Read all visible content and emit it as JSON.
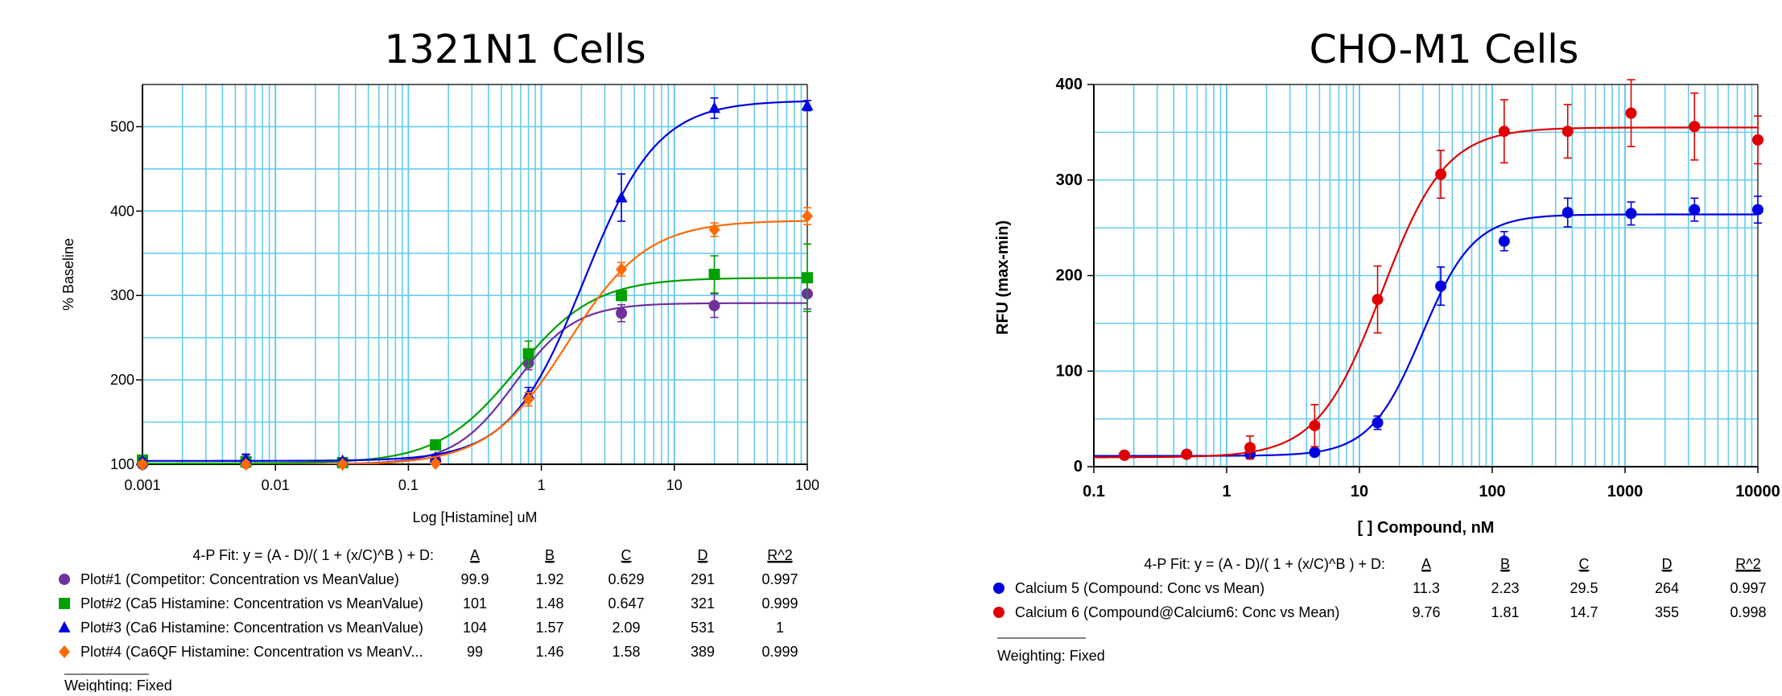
{
  "chart_data": [
    {
      "type": "scatter",
      "title": "1321N1 Cells",
      "xlabel": "Log [Histamine] uM",
      "ylabel": "% Baseline",
      "xscale": "log",
      "xlim": [
        0.001,
        100
      ],
      "ylim": [
        100,
        550
      ],
      "x_ticks": [
        0.001,
        0.01,
        0.1,
        1,
        10,
        100
      ],
      "x_tick_labels": [
        "0.001",
        "0.01",
        "0.1",
        "1",
        "10",
        "100"
      ],
      "y_ticks": [
        100,
        200,
        300,
        400,
        500
      ],
      "y_tick_labels": [
        "100",
        "200",
        "300",
        "400",
        "500"
      ],
      "grid": true,
      "fit_equation": "4-P Fit: y = (A - D)/( 1 + (x/C)^B ) + D:",
      "param_headers": [
        "A",
        "B",
        "C",
        "D",
        "R^2"
      ],
      "weighting": "Weighting: Fixed",
      "series": [
        {
          "name": "Plot#1 (Competitor: Concentration vs MeanValue)",
          "color": "#7030a0",
          "marker": "circle",
          "params": {
            "A": "99.9",
            "B": "1.92",
            "C": "0.629",
            "D": "291",
            "R2": "0.997"
          },
          "fit": {
            "A": 99.9,
            "B": 1.92,
            "C": 0.629,
            "D": 291
          },
          "x": [
            0.001,
            0.006,
            0.032,
            0.16,
            0.8,
            4,
            20,
            100
          ],
          "y": [
            100,
            101,
            102,
            105,
            220,
            279,
            288,
            302
          ],
          "err": [
            3,
            10,
            3,
            3,
            8,
            10,
            14,
            18
          ]
        },
        {
          "name": "Plot#2 (Ca5 Histamine: Concentration vs MeanValue)",
          "color": "#00a000",
          "marker": "square",
          "params": {
            "A": "101",
            "B": "1.48",
            "C": "0.647",
            "D": "321",
            "R2": "0.999"
          },
          "fit": {
            "A": 101,
            "B": 1.48,
            "C": 0.647,
            "D": 321
          },
          "x": [
            0.001,
            0.006,
            0.032,
            0.16,
            0.8,
            4,
            20,
            100
          ],
          "y": [
            105,
            103,
            102,
            123,
            231,
            300,
            325,
            321
          ],
          "err": [
            3,
            6,
            3,
            3,
            15,
            6,
            22,
            40
          ]
        },
        {
          "name": "Plot#3 (Ca6 Histamine: Concentration vs MeanValue)",
          "color": "#0000e0",
          "marker": "triangle",
          "params": {
            "A": "104",
            "B": "1.57",
            "C": "2.09",
            "D": "531",
            "R2": "1"
          },
          "fit": {
            "A": 104,
            "B": 1.57,
            "C": 2.09,
            "D": 531
          },
          "x": [
            0.001,
            0.006,
            0.032,
            0.16,
            0.8,
            4,
            20,
            100
          ],
          "y": [
            104,
            106,
            104,
            108,
            183,
            416,
            522,
            525
          ],
          "err": [
            3,
            6,
            3,
            3,
            8,
            28,
            12,
            6
          ]
        },
        {
          "name": "Plot#4 (Ca6QF Histamine: Concentration vs MeanV...",
          "color": "#ff6a00",
          "marker": "diamond",
          "params": {
            "A": "99",
            "B": "1.46",
            "C": "1.58",
            "D": "389",
            "R2": "0.999"
          },
          "fit": {
            "A": 99,
            "B": 1.46,
            "C": 1.58,
            "D": 389
          },
          "x": [
            0.001,
            0.006,
            0.032,
            0.16,
            0.8,
            4,
            20,
            100
          ],
          "y": [
            100,
            100,
            100,
            101,
            177,
            331,
            378,
            394
          ],
          "err": [
            3,
            3,
            3,
            3,
            8,
            8,
            8,
            10
          ]
        }
      ]
    },
    {
      "type": "scatter",
      "title": "CHO-M1 Cells",
      "xlabel": "[ ] Compound, nM",
      "ylabel": "RFU (max-min)",
      "xscale": "log",
      "xlim": [
        0.1,
        10000
      ],
      "ylim": [
        0,
        400
      ],
      "x_ticks": [
        0.1,
        1,
        10,
        100,
        1000,
        10000
      ],
      "x_tick_labels": [
        "0.1",
        "1",
        "10",
        "100",
        "1000",
        "10000"
      ],
      "y_ticks": [
        0,
        100,
        200,
        300,
        400
      ],
      "y_tick_labels": [
        "0",
        "100",
        "200",
        "300",
        "400"
      ],
      "grid": true,
      "fit_equation": "4-P Fit: y = (A - D)/( 1 + (x/C)^B ) + D:",
      "param_headers": [
        "A",
        "B",
        "C",
        "D",
        "R^2"
      ],
      "weighting": "Weighting: Fixed",
      "series": [
        {
          "name": "Calcium 5 (Compound: Conc vs Mean)",
          "color": "#0000e0",
          "marker": "circle",
          "params": {
            "A": "11.3",
            "B": "2.23",
            "C": "29.5",
            "D": "264",
            "R2": "0.997"
          },
          "fit": {
            "A": 11.3,
            "B": 2.23,
            "C": 29.5,
            "D": 264
          },
          "x": [
            0.17,
            0.5,
            1.5,
            4.6,
            13.7,
            41,
            123,
            370,
            1111,
            3333,
            10000
          ],
          "y": [
            12,
            13,
            13,
            15,
            46,
            189,
            236,
            266,
            265,
            269,
            269
          ],
          "err": [
            2,
            2,
            3,
            3,
            7,
            20,
            10,
            15,
            12,
            12,
            14
          ]
        },
        {
          "name": "Calcium 6 (Compound@Calcium6: Conc vs Mean)",
          "color": "#e00000",
          "marker": "circle",
          "params": {
            "A": "9.76",
            "B": "1.81",
            "C": "14.7",
            "D": "355",
            "R2": "0.998"
          },
          "fit": {
            "A": 9.76,
            "B": 1.81,
            "C": 14.7,
            "D": 355
          },
          "x": [
            0.17,
            0.5,
            1.5,
            4.6,
            13.7,
            41,
            123,
            370,
            1111,
            3333,
            10000
          ],
          "y": [
            12,
            13,
            20,
            43,
            175,
            306,
            351,
            351,
            370,
            356,
            342
          ],
          "err": [
            3,
            3,
            12,
            22,
            35,
            25,
            33,
            28,
            35,
            35,
            25
          ]
        }
      ]
    }
  ]
}
